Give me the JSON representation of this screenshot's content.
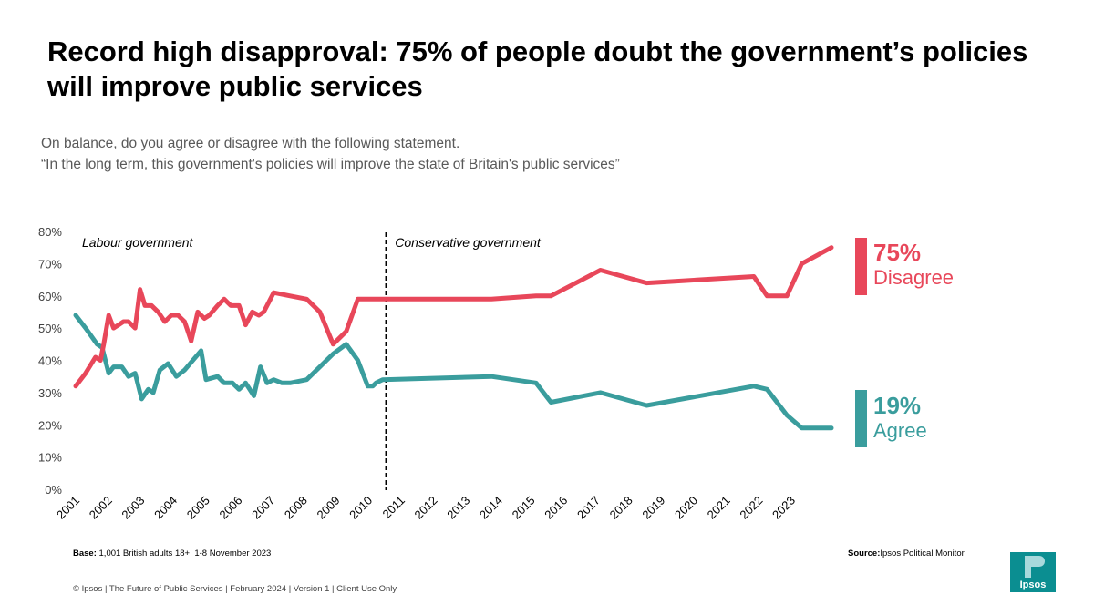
{
  "title": "Record high disapproval: 75% of people doubt the government’s policies will improve public services",
  "subtitle_line1": "On balance, do you agree or disagree with the following statement.",
  "subtitle_line2": "“In the long term, this government's policies will improve the state of Britain's public services”",
  "base_label": "Base:",
  "base_text": "1,001 British adults 18+, 1-8 November 2023",
  "source_label": "Source:",
  "source_text": "Ipsos Political Monitor",
  "footer": "© Ipsos | The Future of Public Services | February 2024 | Version 1 | Client Use Only",
  "logo_text": "Ipsos",
  "colors": {
    "disagree": "#e8475a",
    "agree": "#3a9d9d",
    "logo": "#0b8e91"
  },
  "end_labels": {
    "disagree_value": "75%",
    "disagree_label": "Disagree",
    "agree_value": "19%",
    "agree_label": "Agree"
  },
  "chart_data": {
    "type": "line",
    "title": "",
    "xlabel": "",
    "ylabel": "",
    "ylim": [
      0,
      0.8
    ],
    "xlim": [
      2001.0,
      2023.9
    ],
    "y_tick_labels": [
      "0%",
      "10%",
      "20%",
      "30%",
      "40%",
      "50%",
      "60%",
      "70%",
      "80%"
    ],
    "x_tick_labels": [
      "2001",
      "2002",
      "2003",
      "2004",
      "2005",
      "2006",
      "2007",
      "2008",
      "2009",
      "2010",
      "2011",
      "2012",
      "2013",
      "2014",
      "2015",
      "2016",
      "2017",
      "2018",
      "2019",
      "2020",
      "2021",
      "2022",
      "2023"
    ],
    "grid": false,
    "legend": "none",
    "annotations": [
      {
        "text": "Labour government",
        "position": "top-left"
      },
      {
        "text": "Conservative government",
        "position": "right of divider"
      }
    ],
    "divider_x": 2010.4,
    "series": [
      {
        "name": "Disagree",
        "x": [
          2001.0,
          2001.3,
          2001.6,
          2001.75,
          2001.85,
          2002.0,
          2002.15,
          2002.3,
          2002.45,
          2002.6,
          2002.8,
          2002.95,
          2003.1,
          2003.3,
          2003.5,
          2003.7,
          2003.9,
          2004.1,
          2004.3,
          2004.5,
          2004.7,
          2004.9,
          2005.05,
          2005.3,
          2005.5,
          2005.7,
          2005.95,
          2006.15,
          2006.35,
          2006.55,
          2006.7,
          2006.85,
          2007.0,
          2007.2,
          2007.4,
          2007.6,
          2007.8,
          2008.0,
          2008.3,
          2008.5,
          2009.0,
          2009.4,
          2009.8,
          2010.05,
          2010.2,
          2010.45,
          2010.55,
          2011.0,
          2012.0,
          2013.0,
          2014.0,
          2014.9,
          2015.4,
          2016.9,
          2018.3,
          2020.0,
          2021.55,
          2021.95,
          2022.55,
          2023.0,
          2023.4,
          2023.9
        ],
        "values": [
          0.32,
          0.36,
          0.41,
          0.4,
          0.45,
          0.54,
          0.5,
          0.51,
          0.52,
          0.52,
          0.5,
          0.62,
          0.57,
          0.57,
          0.55,
          0.52,
          0.54,
          0.54,
          0.52,
          0.46,
          0.55,
          0.53,
          0.54,
          0.57,
          0.59,
          0.57,
          0.57,
          0.51,
          0.55,
          0.54,
          0.55,
          0.58,
          0.61,
          0.6,
          0.59,
          0.55,
          0.45,
          0.49,
          0.59,
          0.59,
          0.59,
          0.59,
          0.6,
          0.6,
          0.68,
          0.64,
          0.66,
          0.6,
          0.6,
          0.7,
          0.75,
          0.75,
          0.75,
          0.75,
          0.75,
          0.75,
          0.75,
          0.75,
          0.75,
          0.75,
          0.75,
          0.75
        ],
        "x_note": "",
        "v2x": [
          2001.0,
          2001.3,
          2001.6,
          2001.75,
          2001.85,
          2002.0,
          2002.15,
          2002.3,
          2002.45,
          2002.6,
          2002.8,
          2002.95,
          2003.1,
          2003.3,
          2003.5,
          2003.7,
          2003.9,
          2004.1,
          2004.3,
          2004.5,
          2004.7,
          2004.9,
          2005.05,
          2005.3,
          2005.5,
          2005.7,
          2005.95,
          2006.15,
          2006.35,
          2006.55,
          2006.7,
          2006.85,
          2007.0,
          2007.5,
          2008.0,
          2008.4,
          2008.8,
          2009.2,
          2009.55,
          2009.85,
          2010.0,
          2010.1,
          2010.3,
          2013.6,
          2014.95,
          2015.4,
          2016.9,
          2018.3,
          2021.55,
          2021.95,
          2022.55,
          2023.0,
          2023.9
        ],
        "v2": [
          0.32,
          0.36,
          0.41,
          0.4,
          0.45,
          0.54,
          0.5,
          0.51,
          0.52,
          0.52,
          0.5,
          0.62,
          0.57,
          0.57,
          0.55,
          0.52,
          0.54,
          0.54,
          0.52,
          0.46,
          0.55,
          0.53,
          0.54,
          0.57,
          0.59,
          0.57,
          0.57,
          0.51,
          0.55,
          0.54,
          0.55,
          0.58,
          0.61,
          0.6,
          0.59,
          0.55,
          0.45,
          0.49,
          0.59,
          0.59,
          0.59,
          0.59,
          0.59,
          0.59,
          0.6,
          0.6,
          0.68,
          0.64,
          0.66,
          0.6,
          0.6,
          0.7,
          0.75
        ]
      },
      {
        "name": "Agree",
        "x": [
          2001.0,
          2001.3,
          2001.65,
          2001.8,
          2002.0,
          2002.15,
          2002.4,
          2002.6,
          2002.8,
          2003.0,
          2003.2,
          2003.35,
          2003.55,
          2003.8,
          2004.05,
          2004.3,
          2004.55,
          2004.8,
          2004.95,
          2005.3,
          2005.5,
          2005.75,
          2005.95,
          2006.15,
          2006.4,
          2006.6,
          2006.8,
          2007.0,
          2007.25,
          2007.5,
          2008.0,
          2008.4,
          2008.8,
          2009.2,
          2009.55,
          2009.85,
          2010.0,
          2010.1,
          2010.3,
          2013.6,
          2014.95,
          2015.4,
          2016.9,
          2018.3,
          2021.55,
          2021.95,
          2022.55,
          2023.0,
          2023.9
        ],
        "values": [
          0.54,
          0.5,
          0.45,
          0.44,
          0.36,
          0.38,
          0.38,
          0.35,
          0.36,
          0.28,
          0.31,
          0.3,
          0.37,
          0.39,
          0.35,
          0.37,
          0.4,
          0.43,
          0.34,
          0.35,
          0.33,
          0.33,
          0.31,
          0.33,
          0.29,
          0.38,
          0.33,
          0.34,
          0.33,
          0.33,
          0.34,
          0.38,
          0.42,
          0.45,
          0.4,
          0.32,
          0.32,
          0.33,
          0.34,
          0.35,
          0.33,
          0.27,
          0.3,
          0.26,
          0.32,
          0.31,
          0.23,
          0.19,
          0.19
        ]
      }
    ]
  }
}
